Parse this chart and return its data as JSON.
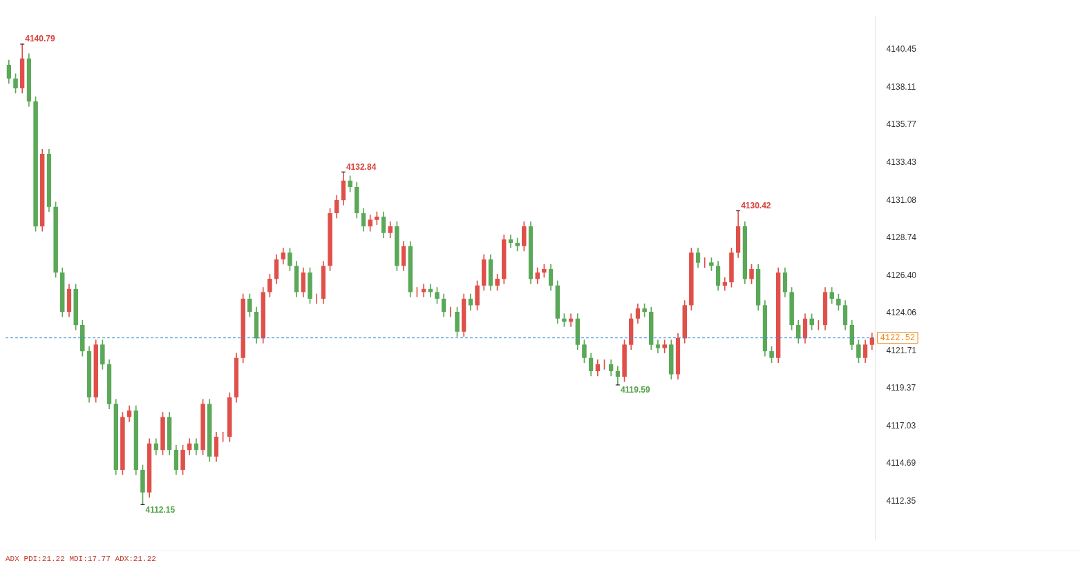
{
  "chart_data": {
    "type": "candlestick",
    "categories": [
      null,
      null,
      null,
      null,
      null,
      null,
      null,
      null,
      null,
      null,
      null,
      null,
      null,
      null,
      null,
      null,
      null,
      null,
      null,
      null,
      null,
      null,
      null,
      null,
      null,
      null,
      null,
      null,
      null,
      null,
      null,
      null,
      null,
      null,
      null,
      null,
      null,
      null,
      null,
      null,
      null,
      null,
      null,
      null,
      null,
      null,
      null,
      null,
      null,
      null,
      null,
      null,
      null,
      null,
      null,
      null,
      null,
      null,
      null,
      null,
      null,
      null,
      null,
      null,
      null,
      null,
      null,
      null,
      null,
      null,
      null,
      null,
      null,
      null,
      null,
      null,
      null,
      null,
      null,
      null,
      null,
      null,
      null,
      null,
      null,
      null,
      null,
      null,
      null,
      null,
      null,
      null,
      null,
      null,
      null,
      null,
      null,
      null,
      null,
      null,
      null,
      null,
      null,
      null,
      null,
      null,
      null,
      null,
      null,
      null,
      null,
      null,
      null,
      null,
      null,
      null,
      null,
      null,
      null,
      null,
      null,
      null,
      null,
      null,
      null,
      null,
      null,
      null,
      null,
      null
    ],
    "ohlc": [
      [
        4139.5,
        4139.8,
        4138.35,
        4138.65
      ],
      [
        4138.65,
        4138.95,
        4137.74,
        4138.04
      ],
      [
        4138.04,
        4140.79,
        4137.74,
        4139.9
      ],
      [
        4139.9,
        4140.2,
        4136.92,
        4137.22
      ],
      [
        4137.22,
        4137.52,
        4129.15,
        4129.45
      ],
      [
        4129.45,
        4134.25,
        4129.15,
        4133.95
      ],
      [
        4133.95,
        4134.25,
        4130.37,
        4130.67
      ],
      [
        4130.67,
        4130.97,
        4126.28,
        4126.58
      ],
      [
        4126.58,
        4126.88,
        4123.83,
        4124.13
      ],
      [
        4124.13,
        4125.86,
        4123.83,
        4125.56
      ],
      [
        4125.56,
        4125.86,
        4123.01,
        4123.31
      ],
      [
        4123.31,
        4123.61,
        4121.38,
        4121.68
      ],
      [
        4121.68,
        4121.98,
        4118.51,
        4118.81
      ],
      [
        4118.81,
        4122.39,
        4118.51,
        4122.09
      ],
      [
        4122.09,
        4122.39,
        4120.56,
        4120.86
      ],
      [
        4120.86,
        4121.16,
        4118.1,
        4118.4
      ],
      [
        4118.4,
        4118.7,
        4114.01,
        4114.31
      ],
      [
        4114.31,
        4117.89,
        4114.01,
        4117.59
      ],
      [
        4117.59,
        4118.3,
        4117.29,
        4118.0
      ],
      [
        4118.0,
        4118.3,
        4114.01,
        4114.31
      ],
      [
        4114.31,
        4114.61,
        4112.15,
        4112.9
      ],
      [
        4112.9,
        4116.25,
        4112.6,
        4115.95
      ],
      [
        4115.95,
        4116.25,
        4115.24,
        4115.54
      ],
      [
        4115.54,
        4117.89,
        4115.24,
        4117.59
      ],
      [
        4117.59,
        4117.89,
        4115.24,
        4115.54
      ],
      [
        4115.54,
        4115.84,
        4114.01,
        4114.31
      ],
      [
        4114.31,
        4115.84,
        4114.01,
        4115.54
      ],
      [
        4115.54,
        4116.25,
        4115.24,
        4115.95
      ],
      [
        4115.95,
        4116.25,
        4115.24,
        4115.54
      ],
      [
        4115.54,
        4118.7,
        4115.24,
        4118.4
      ],
      [
        4118.4,
        4118.7,
        4114.83,
        4115.13
      ],
      [
        4115.13,
        4116.66,
        4114.83,
        4116.36
      ],
      [
        4116.36,
        4116.66,
        4116.06,
        4116.36
      ],
      [
        4116.36,
        4119.11,
        4116.06,
        4118.81
      ],
      [
        4118.81,
        4121.57,
        4118.51,
        4121.27
      ],
      [
        4121.27,
        4125.25,
        4120.97,
        4124.95
      ],
      [
        4124.95,
        4125.25,
        4123.83,
        4124.13
      ],
      [
        4124.13,
        4124.43,
        4122.19,
        4122.49
      ],
      [
        4122.49,
        4125.66,
        4122.19,
        4125.36
      ],
      [
        4125.36,
        4126.48,
        4125.06,
        4126.18
      ],
      [
        4126.18,
        4127.7,
        4125.88,
        4127.4
      ],
      [
        4127.4,
        4128.11,
        4127.1,
        4127.81
      ],
      [
        4127.81,
        4128.11,
        4126.69,
        4126.99
      ],
      [
        4126.99,
        4127.29,
        4125.06,
        4125.36
      ],
      [
        4125.36,
        4126.88,
        4125.06,
        4126.58
      ],
      [
        4126.58,
        4126.88,
        4124.65,
        4124.95
      ],
      [
        4124.95,
        4125.25,
        4124.65,
        4124.95
      ],
      [
        4124.95,
        4127.29,
        4124.65,
        4126.99
      ],
      [
        4126.99,
        4130.57,
        4126.69,
        4130.27
      ],
      [
        4130.27,
        4131.38,
        4129.97,
        4131.08
      ],
      [
        4131.08,
        4132.84,
        4130.78,
        4132.3
      ],
      [
        4132.3,
        4132.6,
        4131.6,
        4131.9
      ],
      [
        4131.9,
        4132.2,
        4129.97,
        4130.27
      ],
      [
        4130.27,
        4130.57,
        4129.15,
        4129.45
      ],
      [
        4129.45,
        4130.16,
        4129.15,
        4129.86
      ],
      [
        4129.86,
        4130.36,
        4129.56,
        4130.06
      ],
      [
        4130.06,
        4130.36,
        4128.74,
        4129.04
      ],
      [
        4129.04,
        4129.75,
        4128.74,
        4129.45
      ],
      [
        4129.45,
        4129.75,
        4126.69,
        4126.99
      ],
      [
        4126.99,
        4128.52,
        4126.69,
        4128.22
      ],
      [
        4128.22,
        4128.52,
        4125.06,
        4125.36
      ],
      [
        4125.36,
        4125.66,
        4125.06,
        4125.36
      ],
      [
        4125.36,
        4125.86,
        4125.06,
        4125.56
      ],
      [
        4125.56,
        4125.86,
        4125.06,
        4125.36
      ],
      [
        4125.36,
        4125.66,
        4124.65,
        4124.95
      ],
      [
        4124.95,
        4125.25,
        4123.83,
        4124.13
      ],
      [
        4124.13,
        4124.43,
        4123.83,
        4124.13
      ],
      [
        4124.13,
        4124.43,
        4122.6,
        4122.9
      ],
      [
        4122.9,
        4125.25,
        4122.6,
        4124.95
      ],
      [
        4124.95,
        4125.25,
        4124.24,
        4124.54
      ],
      [
        4124.54,
        4126.07,
        4124.24,
        4125.77
      ],
      [
        4125.77,
        4127.7,
        4125.47,
        4127.4
      ],
      [
        4127.4,
        4127.7,
        4125.47,
        4125.77
      ],
      [
        4125.77,
        4126.48,
        4125.47,
        4126.18
      ],
      [
        4126.18,
        4128.93,
        4125.88,
        4128.63
      ],
      [
        4128.63,
        4128.93,
        4128.13,
        4128.43
      ],
      [
        4128.43,
        4128.73,
        4127.92,
        4128.22
      ],
      [
        4128.22,
        4129.75,
        4127.92,
        4129.45
      ],
      [
        4129.45,
        4129.75,
        4125.88,
        4126.18
      ],
      [
        4126.18,
        4126.88,
        4125.88,
        4126.58
      ],
      [
        4126.58,
        4127.09,
        4126.28,
        4126.79
      ],
      [
        4126.79,
        4127.09,
        4125.47,
        4125.77
      ],
      [
        4125.77,
        4126.07,
        4123.42,
        4123.72
      ],
      [
        4123.72,
        4124.02,
        4123.22,
        4123.52
      ],
      [
        4123.52,
        4124.02,
        4123.22,
        4123.72
      ],
      [
        4123.72,
        4124.02,
        4121.79,
        4122.09
      ],
      [
        4122.09,
        4122.39,
        4120.97,
        4121.27
      ],
      [
        4121.27,
        4121.57,
        4120.15,
        4120.45
      ],
      [
        4120.45,
        4121.16,
        4120.15,
        4120.86
      ],
      [
        4120.86,
        4121.16,
        4120.56,
        4120.86
      ],
      [
        4120.86,
        4121.16,
        4120.15,
        4120.45
      ],
      [
        4120.45,
        4120.75,
        4119.59,
        4120.1
      ],
      [
        4120.1,
        4122.39,
        4119.8,
        4122.09
      ],
      [
        4122.09,
        4124.02,
        4121.79,
        4123.72
      ],
      [
        4123.72,
        4124.64,
        4123.42,
        4124.34
      ],
      [
        4124.34,
        4124.64,
        4123.83,
        4124.13
      ],
      [
        4124.13,
        4124.43,
        4121.79,
        4122.09
      ],
      [
        4122.09,
        4122.39,
        4121.58,
        4121.88
      ],
      [
        4121.88,
        4122.39,
        4121.58,
        4122.09
      ],
      [
        4122.09,
        4122.39,
        4119.95,
        4120.25
      ],
      [
        4120.25,
        4122.79,
        4119.95,
        4122.49
      ],
      [
        4122.49,
        4124.84,
        4122.19,
        4124.54
      ],
      [
        4124.54,
        4128.11,
        4124.24,
        4127.81
      ],
      [
        4127.81,
        4128.11,
        4126.9,
        4127.2
      ],
      [
        4127.2,
        4127.5,
        4126.9,
        4127.2
      ],
      [
        4127.2,
        4127.5,
        4126.69,
        4126.99
      ],
      [
        4126.99,
        4127.29,
        4125.47,
        4125.77
      ],
      [
        4125.77,
        4126.27,
        4125.47,
        4125.97
      ],
      [
        4125.97,
        4128.11,
        4125.67,
        4127.81
      ],
      [
        4127.81,
        4130.42,
        4127.51,
        4129.45
      ],
      [
        4129.45,
        4129.75,
        4125.88,
        4126.18
      ],
      [
        4126.18,
        4127.09,
        4125.88,
        4126.79
      ],
      [
        4126.79,
        4127.09,
        4124.24,
        4124.54
      ],
      [
        4124.54,
        4124.84,
        4121.38,
        4121.68
      ],
      [
        4121.68,
        4121.98,
        4120.97,
        4121.27
      ],
      [
        4121.27,
        4126.88,
        4120.97,
        4126.58
      ],
      [
        4126.58,
        4126.88,
        4125.06,
        4125.36
      ],
      [
        4125.36,
        4125.66,
        4123.01,
        4123.31
      ],
      [
        4123.31,
        4123.61,
        4122.19,
        4122.49
      ],
      [
        4122.49,
        4124.02,
        4122.19,
        4123.72
      ],
      [
        4123.72,
        4124.02,
        4123.01,
        4123.31
      ],
      [
        4123.31,
        4123.61,
        4123.01,
        4123.31
      ],
      [
        4123.31,
        4125.66,
        4123.01,
        4125.36
      ],
      [
        4125.36,
        4125.66,
        4124.65,
        4124.95
      ],
      [
        4124.95,
        4125.25,
        4124.24,
        4124.54
      ],
      [
        4124.54,
        4124.84,
        4123.01,
        4123.31
      ],
      [
        4123.31,
        4123.61,
        4121.79,
        4122.09
      ],
      [
        4122.09,
        4122.39,
        4120.97,
        4121.27
      ],
      [
        4121.27,
        4122.39,
        4120.97,
        4122.09
      ],
      [
        4122.09,
        4122.82,
        4121.79,
        4122.52
      ]
    ],
    "colors": [
      "#5aa858",
      "#5aa858",
      "#e0504a",
      "#5aa858",
      "#5aa858",
      "#e0504a",
      "#5aa858",
      "#5aa858",
      "#5aa858",
      "#e0504a",
      "#5aa858",
      "#5aa858",
      "#5aa858",
      "#e0504a",
      "#5aa858",
      "#5aa858",
      "#5aa858",
      "#e0504a",
      "#e0504a",
      "#5aa858",
      "#5aa858",
      "#e0504a",
      "#5aa858",
      "#e0504a",
      "#5aa858",
      "#5aa858",
      "#e0504a",
      "#e0504a",
      "#5aa858",
      "#e0504a",
      "#5aa858",
      "#e0504a",
      "#e0504a",
      "#e0504a",
      "#e0504a",
      "#e0504a",
      "#5aa858",
      "#5aa858",
      "#e0504a",
      "#e0504a",
      "#e0504a",
      "#e0504a",
      "#5aa858",
      "#5aa858",
      "#e0504a",
      "#5aa858",
      "#e0504a",
      "#e0504a",
      "#e0504a",
      "#e0504a",
      "#e0504a",
      "#5aa858",
      "#5aa858",
      "#5aa858",
      "#e0504a",
      "#e0504a",
      "#5aa858",
      "#e0504a",
      "#5aa858",
      "#e0504a",
      "#5aa858",
      "#e0504a",
      "#e0504a",
      "#5aa858",
      "#5aa858",
      "#5aa858",
      "#e0504a",
      "#5aa858",
      "#e0504a",
      "#5aa858",
      "#e0504a",
      "#e0504a",
      "#5aa858",
      "#e0504a",
      "#e0504a",
      "#5aa858",
      "#5aa858",
      "#e0504a",
      "#5aa858",
      "#e0504a",
      "#e0504a",
      "#5aa858",
      "#5aa858",
      "#5aa858",
      "#e0504a",
      "#5aa858",
      "#5aa858",
      "#5aa858",
      "#e0504a",
      "#e0504a",
      "#5aa858",
      "#5aa858",
      "#e0504a",
      "#e0504a",
      "#e0504a",
      "#5aa858",
      "#5aa858",
      "#5aa858",
      "#e0504a",
      "#5aa858",
      "#e0504a",
      "#e0504a",
      "#e0504a",
      "#5aa858",
      "#e0504a",
      "#5aa858",
      "#5aa858",
      "#e0504a",
      "#e0504a",
      "#e0504a",
      "#5aa858",
      "#e0504a",
      "#5aa858",
      "#5aa858",
      "#5aa858",
      "#e0504a",
      "#5aa858",
      "#5aa858",
      "#5aa858",
      "#e0504a",
      "#5aa858",
      "#e0504a",
      "#e0504a",
      "#5aa858",
      "#5aa858",
      "#5aa858",
      "#5aa858",
      "#5aa858",
      "#e0504a",
      "#e0504a"
    ],
    "ylim": [
      4109.94,
      4142.54
    ],
    "yticks": [
      4112.35,
      4114.69,
      4117.03,
      4119.37,
      4121.71,
      {
        "value": 4124.06,
        "label": "4124.06"
      },
      {
        "value": 4126.4,
        "label": "4126.40"
      },
      4128.74,
      4131.08,
      4133.43,
      4135.77,
      4138.11,
      4140.45
    ],
    "tick_labels": "y",
    "grid": false,
    "legend": false,
    "ref_lines": [
      {
        "axis": "y",
        "value": 4122.52,
        "label": "4122.52",
        "color": "#3a8fd9",
        "line_style": "dashed"
      }
    ],
    "annotations": [
      "4140.79",
      "4132.84",
      "4130.42",
      "4119.59",
      "4112.15",
      "ADX PDI:21.22 MDI:17.77 ADX:21.22"
    ]
  }
}
